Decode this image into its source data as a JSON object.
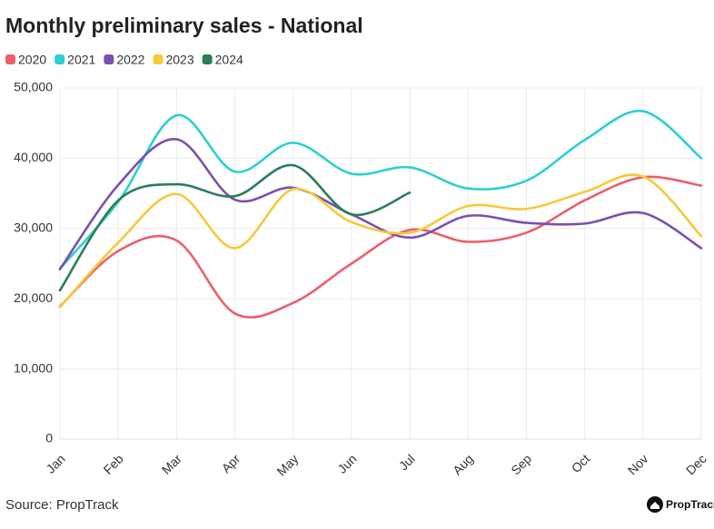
{
  "chart_data": {
    "type": "line",
    "title": "Monthly preliminary sales - National",
    "source": "Source: PropTrack",
    "logo": "PropTrack",
    "categories": [
      "Jan",
      "Feb",
      "Mar",
      "Apr",
      "May",
      "Jun",
      "Jul",
      "Aug",
      "Sep",
      "Oct",
      "Nov",
      "Dec"
    ],
    "series": [
      {
        "name": "2020",
        "color": "#ec5f6b",
        "values": [
          18900,
          26800,
          28300,
          17900,
          19400,
          25000,
          29800,
          28100,
          29400,
          34000,
          37300,
          36100
        ]
      },
      {
        "name": "2021",
        "color": "#2ccfd4",
        "values": [
          24300,
          33800,
          46100,
          38100,
          42200,
          37800,
          38700,
          35700,
          36800,
          42600,
          46700,
          40000
        ]
      },
      {
        "name": "2022",
        "color": "#7b4fb0",
        "values": [
          24200,
          36200,
          42700,
          34100,
          35800,
          32000,
          28700,
          31800,
          30800,
          30700,
          32200,
          27200
        ]
      },
      {
        "name": "2023",
        "color": "#f7c938",
        "values": [
          18800,
          28000,
          34900,
          27200,
          35600,
          30900,
          29400,
          33200,
          32800,
          35200,
          37400,
          28900
        ]
      },
      {
        "name": "2024",
        "color": "#2d7d56",
        "values": [
          21200,
          34000,
          36300,
          34600,
          39000,
          32000,
          35100,
          null,
          null,
          null,
          null,
          null
        ]
      }
    ],
    "ylim": [
      0,
      50000
    ],
    "yticks": [
      0,
      {
        "value": 10000,
        "label": "10,000"
      },
      {
        "value": 20000,
        "label": "20,000"
      },
      {
        "value": 30000,
        "label": "30,000"
      },
      {
        "value": 40000,
        "label": "40,000"
      },
      {
        "value": 50000,
        "label": "50,000"
      }
    ],
    "grid": true,
    "legend": "top-left"
  }
}
